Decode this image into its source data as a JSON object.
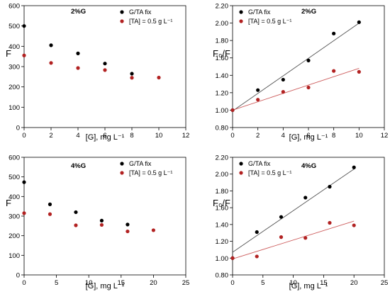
{
  "chart_data": [
    {
      "type": "scatter",
      "title": "2%G",
      "xlabel": "[G], mg L⁻¹",
      "ylabel": "F",
      "xlim": [
        0,
        12
      ],
      "ylim": [
        0,
        600
      ],
      "xticks": [
        "0",
        "2",
        "4",
        "6",
        "8",
        "10",
        "12"
      ],
      "yticks": [
        "0",
        "100",
        "200",
        "300",
        "400",
        "500",
        "600"
      ],
      "legend_position": "top-right",
      "series": [
        {
          "name": "G/TA fix",
          "color": "#000000",
          "x": [
            0,
            2,
            4,
            6,
            8
          ],
          "y": [
            500,
            405,
            365,
            315,
            265
          ]
        },
        {
          "name": "[TA] = 0.5 g L⁻¹",
          "color": "#b22222",
          "x": [
            0,
            2,
            4,
            6,
            8,
            10
          ],
          "y": [
            355,
            318,
            293,
            283,
            245,
            246
          ]
        }
      ],
      "trendlines": []
    },
    {
      "type": "scatter",
      "title": "2%G",
      "xlabel": "[G], mg L⁻¹",
      "ylabel": "F₀/F",
      "xlim": [
        0,
        12
      ],
      "ylim": [
        0.8,
        2.2
      ],
      "xticks": [
        "0",
        "2",
        "4",
        "6",
        "8",
        "10",
        "12"
      ],
      "yticks": [
        "0.80",
        "1.00",
        "1.20",
        "1.40",
        "1.60",
        "1.80",
        "2.00",
        "2.20"
      ],
      "legend_position": "top-left",
      "series": [
        {
          "name": "G/TA fix",
          "color": "#000000",
          "x": [
            0,
            2,
            4,
            6,
            8,
            10
          ],
          "y": [
            1.0,
            1.23,
            1.35,
            1.57,
            1.88,
            2.01
          ]
        },
        {
          "name": "[TA] = 0.5 g L⁻¹",
          "color": "#b22222",
          "x": [
            0,
            2,
            4,
            6,
            8,
            10
          ],
          "y": [
            1.0,
            1.12,
            1.21,
            1.26,
            1.45,
            1.44
          ]
        }
      ],
      "trendlines": [
        {
          "series": "G/TA fix",
          "color": "#555555",
          "x": [
            0,
            10
          ],
          "y": [
            0.99,
            2.0
          ]
        },
        {
          "series": "[TA] = 0.5 g L⁻¹",
          "color": "#cd5c5c",
          "x": [
            0,
            10
          ],
          "y": [
            1.0,
            1.48
          ]
        }
      ]
    },
    {
      "type": "scatter",
      "title": "4%G",
      "xlabel": "[G], mg L⁻¹",
      "ylabel": "F",
      "xlim": [
        0,
        25
      ],
      "ylim": [
        0,
        600
      ],
      "xticks": [
        "0",
        "5",
        "10",
        "15",
        "20",
        "25"
      ],
      "yticks": [
        "0",
        "100",
        "200",
        "300",
        "400",
        "500",
        "600"
      ],
      "legend_position": "top-right",
      "series": [
        {
          "name": "G/TA fix",
          "color": "#000000",
          "x": [
            0,
            4,
            8,
            12,
            16
          ],
          "y": [
            473,
            360,
            320,
            277,
            257
          ]
        },
        {
          "name": "[TA] = 0.5 g L⁻¹",
          "color": "#b22222",
          "x": [
            0,
            4,
            8,
            12,
            16,
            20
          ],
          "y": [
            315,
            310,
            253,
            255,
            222,
            228
          ]
        }
      ],
      "trendlines": []
    },
    {
      "type": "scatter",
      "title": "4%G",
      "xlabel": "[G], mg L⁻¹",
      "ylabel": "F₀/F",
      "xlim": [
        0,
        25
      ],
      "ylim": [
        0.8,
        2.2
      ],
      "xticks": [
        "0",
        "5",
        "10",
        "15",
        "20",
        "25"
      ],
      "yticks": [
        "0.80",
        "1.00",
        "1.20",
        "1.40",
        "1.60",
        "1.80",
        "2.00",
        "2.20"
      ],
      "legend_position": "top-left",
      "series": [
        {
          "name": "G/TA fix",
          "color": "#000000",
          "x": [
            0,
            4,
            8,
            12,
            16,
            20
          ],
          "y": [
            1.0,
            1.31,
            1.49,
            1.72,
            1.85,
            2.08
          ]
        },
        {
          "name": "[TA] = 0.5 g L⁻¹",
          "color": "#b22222",
          "x": [
            0,
            4,
            8,
            12,
            16,
            20
          ],
          "y": [
            1.0,
            1.02,
            1.25,
            1.24,
            1.42,
            1.39
          ]
        }
      ],
      "trendlines": [
        {
          "series": "G/TA fix",
          "color": "#555555",
          "x": [
            0,
            20
          ],
          "y": [
            1.07,
            2.06
          ]
        },
        {
          "series": "[TA] = 0.5 g L⁻¹",
          "color": "#cd5c5c",
          "x": [
            0,
            20
          ],
          "y": [
            0.99,
            1.44
          ]
        }
      ]
    }
  ]
}
